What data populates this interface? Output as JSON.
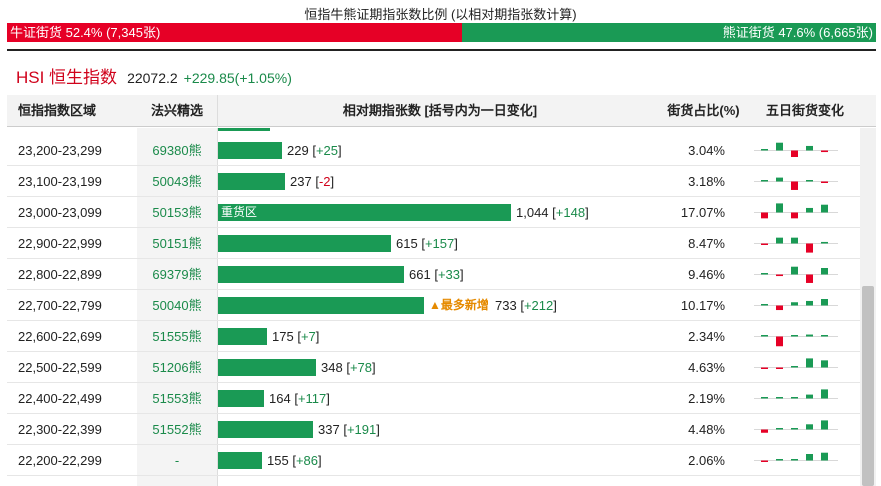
{
  "ratio": {
    "title": "恒指牛熊证期指张数比例 (以相对期指张数计算)",
    "bull_label": "牛证街货 52.4% (7,345张)",
    "bear_label": "熊证街货 47.6% (6,665张)",
    "bull_fraction": 0.524
  },
  "index": {
    "name": "HSI 恒生指数",
    "price": "22072.2",
    "change": "+229.85(+1.05%)"
  },
  "columns": {
    "range": "恒指指数区域",
    "pick": "法兴精选",
    "count": "相对期指张数 [括号内为一日变化]",
    "pct": "街货占比(%)",
    "five_day": "五日街货变化"
  },
  "colors": {
    "bull": "#e60026",
    "bear": "#1a9a55",
    "accent": "#e58a00"
  },
  "bar_max": 1044,
  "rows": [
    {
      "range": "23,200-23,299",
      "pick": "69380熊",
      "count": 229,
      "count_text": "229",
      "change": "+25",
      "pct": "3.04%",
      "five": [
        0,
        0.6,
        -0.5,
        0.35,
        -0.12
      ],
      "bar_label": "",
      "note": ""
    },
    {
      "range": "23,100-23,199",
      "pick": "50043熊",
      "count": 237,
      "count_text": "237",
      "change": "-2",
      "pct": "3.18%",
      "five": [
        0.05,
        0.3,
        -0.65,
        0.05,
        -0.06
      ],
      "bar_label": "",
      "note": ""
    },
    {
      "range": "23,000-23,099",
      "pick": "50153熊",
      "count": 1044,
      "count_text": "1,044",
      "change": "+148",
      "pct": "17.07%",
      "five": [
        -0.45,
        0.7,
        -0.45,
        0.35,
        0.6
      ],
      "bar_label": "重货区",
      "note": ""
    },
    {
      "range": "22,900-22,999",
      "pick": "50151熊",
      "count": 615,
      "count_text": "615",
      "change": "+157",
      "pct": "8.47%",
      "five": [
        -0.08,
        0.45,
        0.45,
        -0.7,
        0.12
      ],
      "bar_label": "",
      "note": ""
    },
    {
      "range": "22,800-22,899",
      "pick": "69379熊",
      "count": 661,
      "count_text": "661",
      "change": "+33",
      "pct": "9.46%",
      "five": [
        0,
        -0.12,
        0.6,
        -0.65,
        0.5
      ],
      "bar_label": "",
      "note": ""
    },
    {
      "range": "22,700-22,799",
      "pick": "50040熊",
      "count": 733,
      "count_text": "733",
      "change": "+212",
      "pct": "10.17%",
      "five": [
        0,
        -0.35,
        0.25,
        0.35,
        0.5
      ],
      "bar_label": "",
      "note": "▲最多新增"
    },
    {
      "range": "22,600-22,699",
      "pick": "51555熊",
      "count": 175,
      "count_text": "175",
      "change": "+7",
      "pct": "2.34%",
      "five": [
        0,
        -0.75,
        0,
        0.15,
        0.1
      ],
      "bar_label": "",
      "note": ""
    },
    {
      "range": "22,500-22,599",
      "pick": "51206熊",
      "count": 348,
      "count_text": "348",
      "change": "+78",
      "pct": "4.63%",
      "five": [
        -0.06,
        -0.06,
        0,
        0.7,
        0.55
      ],
      "bar_label": "",
      "note": ""
    },
    {
      "range": "22,400-22,499",
      "pick": "51553熊",
      "count": 164,
      "count_text": "164",
      "change": "+117",
      "pct": "2.19%",
      "five": [
        0,
        0,
        0,
        0.3,
        0.7
      ],
      "bar_label": "",
      "note": ""
    },
    {
      "range": "22,300-22,399",
      "pick": "51552熊",
      "count": 337,
      "count_text": "337",
      "change": "+191",
      "pct": "4.48%",
      "five": [
        -0.25,
        0,
        0,
        0.4,
        0.7
      ],
      "bar_label": "",
      "note": ""
    },
    {
      "range": "22,200-22,299",
      "pick": "-",
      "count": 155,
      "count_text": "155",
      "change": "+86",
      "pct": "2.06%",
      "five": [
        -0.06,
        0,
        0,
        0.5,
        0.6
      ],
      "bar_label": "",
      "note": ""
    }
  ]
}
